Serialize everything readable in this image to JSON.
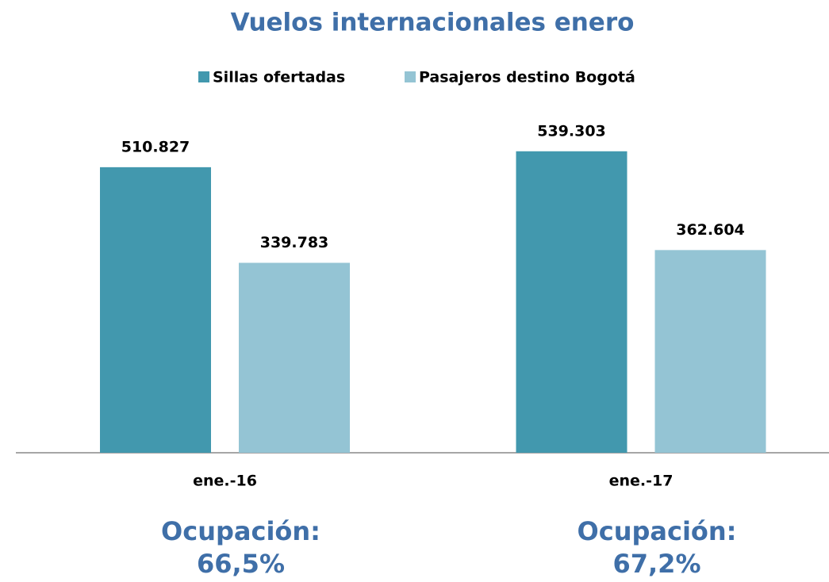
{
  "chart_data": {
    "type": "bar",
    "title": "Vuelos internacionales enero",
    "categories": [
      "ene.-16",
      "ene.-17"
    ],
    "series": [
      {
        "name": "Sillas ofertadas",
        "color": "#4298ae",
        "values": [
          510827,
          539303
        ],
        "value_labels": [
          "510.827",
          "539.303"
        ]
      },
      {
        "name": "Pasajeros destino Bogotá",
        "color": "#94c4d4",
        "values": [
          339783,
          362604
        ],
        "value_labels": [
          "339.783",
          "362.604"
        ]
      }
    ],
    "ylim": [
      0,
      600000
    ],
    "legend": "top",
    "annotations": [
      {
        "label": "Ocupación:",
        "value_label": "66,5%"
      },
      {
        "label": "Ocupación:",
        "value_label": "67,2%"
      }
    ]
  }
}
